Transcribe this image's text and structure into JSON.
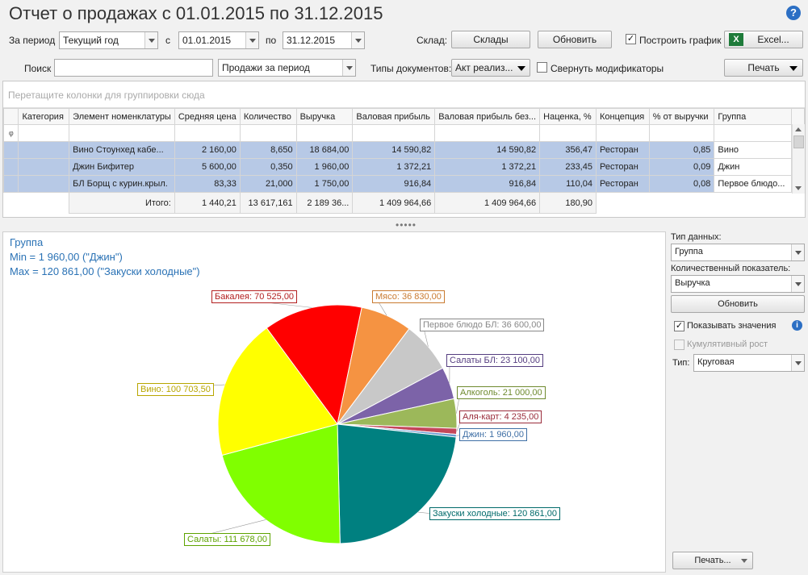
{
  "title": "Отчет о продажах с 01.01.2015 по 31.12.2015",
  "help_label": "?",
  "filters": {
    "period_label": "За период",
    "period_value": "Текущий год",
    "from_label": "с",
    "from_value": "01.01.2015",
    "to_label": "по",
    "to_value": "31.12.2015",
    "search_label": "Поиск",
    "search_value": "",
    "report_type": "Продажи за период",
    "warehouse_label": "Склад:",
    "warehouse_button": "Склады",
    "refresh_button": "Обновить",
    "build_chart_label": "Построить график",
    "build_chart_checked": true,
    "excel_button": "Excel...",
    "doc_types_label": "Типы документов:",
    "doc_types_value": "Акт реализ...",
    "collapse_mod_label": "Свернуть модификаторы",
    "collapse_mod_checked": false,
    "print_button": "Печать"
  },
  "grid": {
    "group_hint": "Перетащите колонки для группировки сюда",
    "filter_icon": "φ",
    "columns": [
      "Категория",
      "Элемент номенклатуры",
      "Средняя цена",
      "Количество",
      "Выручка",
      "Валовая прибыль",
      "Валовая прибыль без...",
      "Наценка, %",
      "Концепция",
      "% от выручки",
      "Группа"
    ],
    "rows": [
      [
        "",
        "Вино Стоунхед кабе...",
        "2 160,00",
        "8,650",
        "18 684,00",
        "14 590,82",
        "14 590,82",
        "356,47",
        "Ресторан",
        "0,85",
        "Вино"
      ],
      [
        "",
        "Джин Бифитер",
        "5 600,00",
        "0,350",
        "1 960,00",
        "1 372,21",
        "1 372,21",
        "233,45",
        "Ресторан",
        "0,09",
        "Джин"
      ],
      [
        "",
        "БЛ Борщ с курин.крыл.",
        "83,33",
        "21,000",
        "1 750,00",
        "916,84",
        "916,84",
        "110,04",
        "Ресторан",
        "0,08",
        "Первое блюдо..."
      ]
    ],
    "totals": {
      "label": "Итого:",
      "avg_price": "1 440,21",
      "quantity": "13 617,161",
      "revenue": "2 189 36...",
      "gross_profit": "1 409 964,66",
      "gross_profit_no": "1 409 964,66",
      "markup": "180,90"
    }
  },
  "splitter": "•••••",
  "chart_info": {
    "line1": "Группа",
    "line2": "Min = 1 960,00 (\"Джин\")",
    "line3": "Max = 120 861,00 (\"Закуски холодные\")"
  },
  "chart_data": {
    "type": "pie",
    "slices": [
      {
        "label": "Бакалея",
        "value": 70525.0,
        "value_text": "70 525,00",
        "color": "#ff0000",
        "label_color": "#b32020"
      },
      {
        "label": "Мясо",
        "value": 36830.0,
        "value_text": "36 830,00",
        "color": "#f59342",
        "label_color": "#c97a30"
      },
      {
        "label": "Первое блюдо БЛ",
        "value": 36600.0,
        "value_text": "36 600,00",
        "color": "#c8c8c8",
        "label_color": "#888888"
      },
      {
        "label": "Салаты БЛ",
        "value": 23100.0,
        "value_text": "23 100,00",
        "color": "#7c63a8",
        "label_color": "#553d80"
      },
      {
        "label": "Алкоголь",
        "value": 21000.0,
        "value_text": "21 000,00",
        "color": "#9cb85a",
        "label_color": "#6e8a2e"
      },
      {
        "label": "Аля-карт",
        "value": 4235.0,
        "value_text": "4 235,00",
        "color": "#c4475a",
        "label_color": "#9a2c3b"
      },
      {
        "label": "Джин",
        "value": 1960.0,
        "value_text": "1 960,00",
        "color": "#6b9bd1",
        "label_color": "#3f6fa5"
      },
      {
        "label": "Закуски холодные",
        "value": 120861.0,
        "value_text": "120 861,00",
        "color": "#008080",
        "label_color": "#006a6a"
      },
      {
        "label": "Салаты",
        "value": 111678.0,
        "value_text": "111 678,00",
        "color": "#80ff00",
        "label_color": "#5da300"
      },
      {
        "label": "Вино",
        "value": 100703.5,
        "value_text": "100 703,50",
        "color": "#ffff00",
        "label_color": "#b8a600"
      }
    ]
  },
  "sidebar": {
    "data_type_label": "Тип данных:",
    "data_type_value": "Группа",
    "measure_label": "Количественный показатель:",
    "measure_value": "Выручка",
    "refresh_button": "Обновить",
    "show_values_label": "Показывать значения",
    "show_values_checked": true,
    "cumulative_label": "Кумулятивный рост",
    "cumulative_checked": false,
    "type_label": "Тип:",
    "type_value": "Круговая",
    "print_button": "Печать..."
  }
}
